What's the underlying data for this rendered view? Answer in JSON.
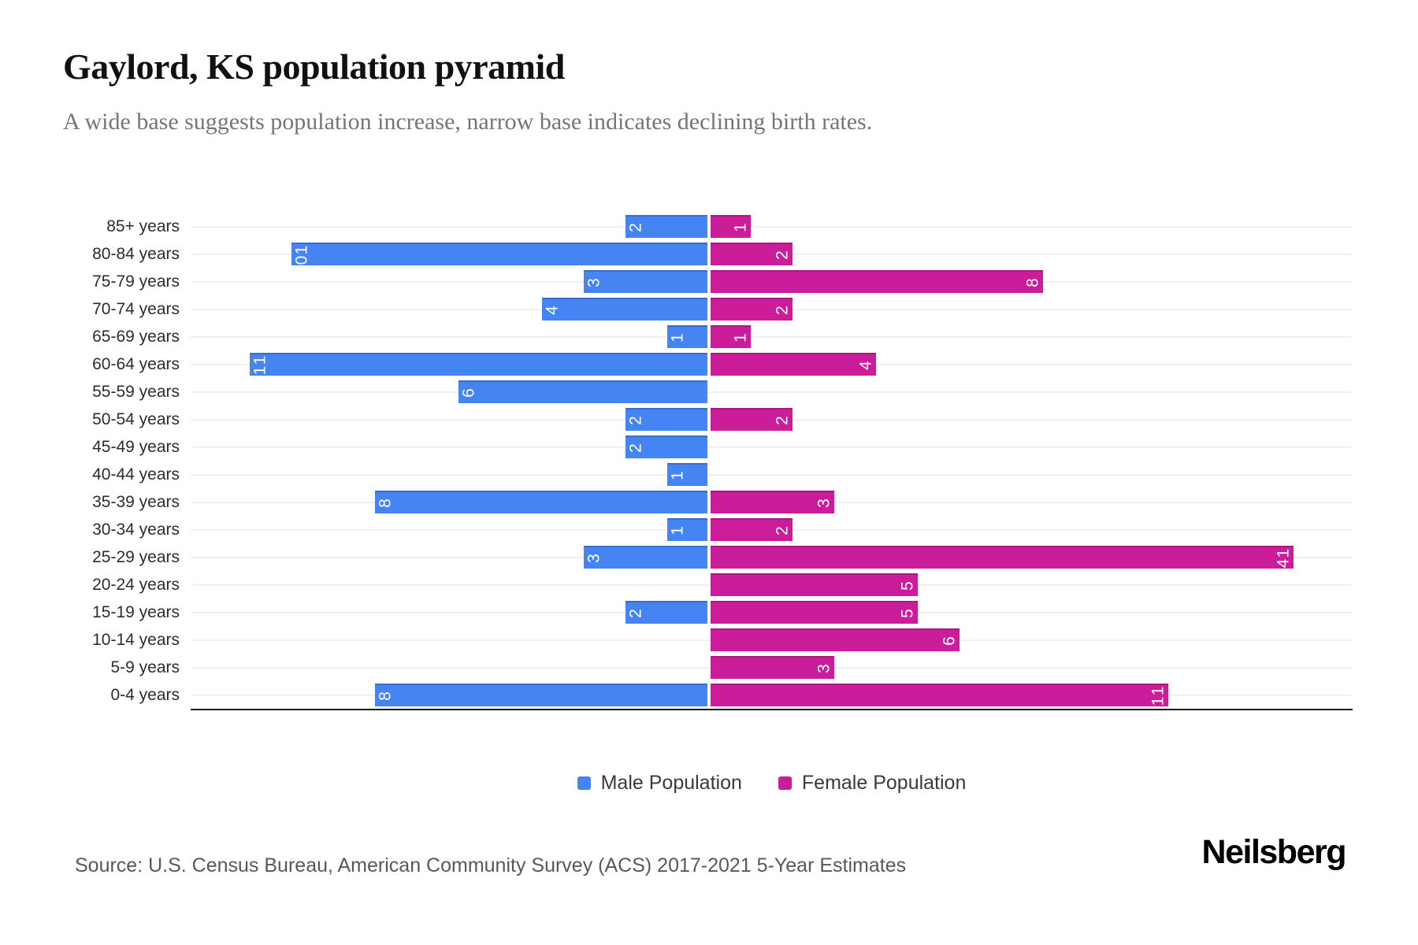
{
  "title": "Gaylord, KS population pyramid",
  "subtitle": "A wide base suggests population increase, narrow base indicates declining birth rates.",
  "colors": {
    "male": "#4484f3",
    "female": "#cb1d9a",
    "grid": "#f1f1f1",
    "axis": "#1c1c1c"
  },
  "legend": {
    "items": [
      {
        "label": "Male Population",
        "series": "male"
      },
      {
        "label": "Female Population",
        "series": "female"
      }
    ]
  },
  "footer": {
    "source": "Source: U.S. Census Bureau, American Community Survey (ACS) 2017-2021 5-Year Estimates",
    "brand": "Neilsberg"
  },
  "chart_data": {
    "type": "bar",
    "variant": "population-pyramid",
    "orientation": "horizontal",
    "grid": true,
    "legend_position": "bottom",
    "value_axis_max": 14,
    "categories": [
      "85+ years",
      "80-84 years",
      "75-79 years",
      "70-74 years",
      "65-69 years",
      "60-64 years",
      "55-59 years",
      "50-54 years",
      "45-49 years",
      "40-44 years",
      "35-39 years",
      "30-34 years",
      "25-29 years",
      "20-24 years",
      "15-19 years",
      "10-14 years",
      "5-9 years",
      "0-4 years"
    ],
    "series": [
      {
        "name": "Male Population",
        "direction": "left",
        "color": "#4484f3",
        "values": [
          2,
          10,
          3,
          4,
          1,
          11,
          6,
          2,
          2,
          1,
          8,
          1,
          3,
          0,
          2,
          0,
          0,
          8
        ]
      },
      {
        "name": "Female Population",
        "direction": "right",
        "color": "#cb1d9a",
        "values": [
          1,
          2,
          8,
          2,
          1,
          4,
          0,
          2,
          0,
          0,
          3,
          2,
          14,
          5,
          5,
          6,
          3,
          11
        ]
      }
    ]
  }
}
